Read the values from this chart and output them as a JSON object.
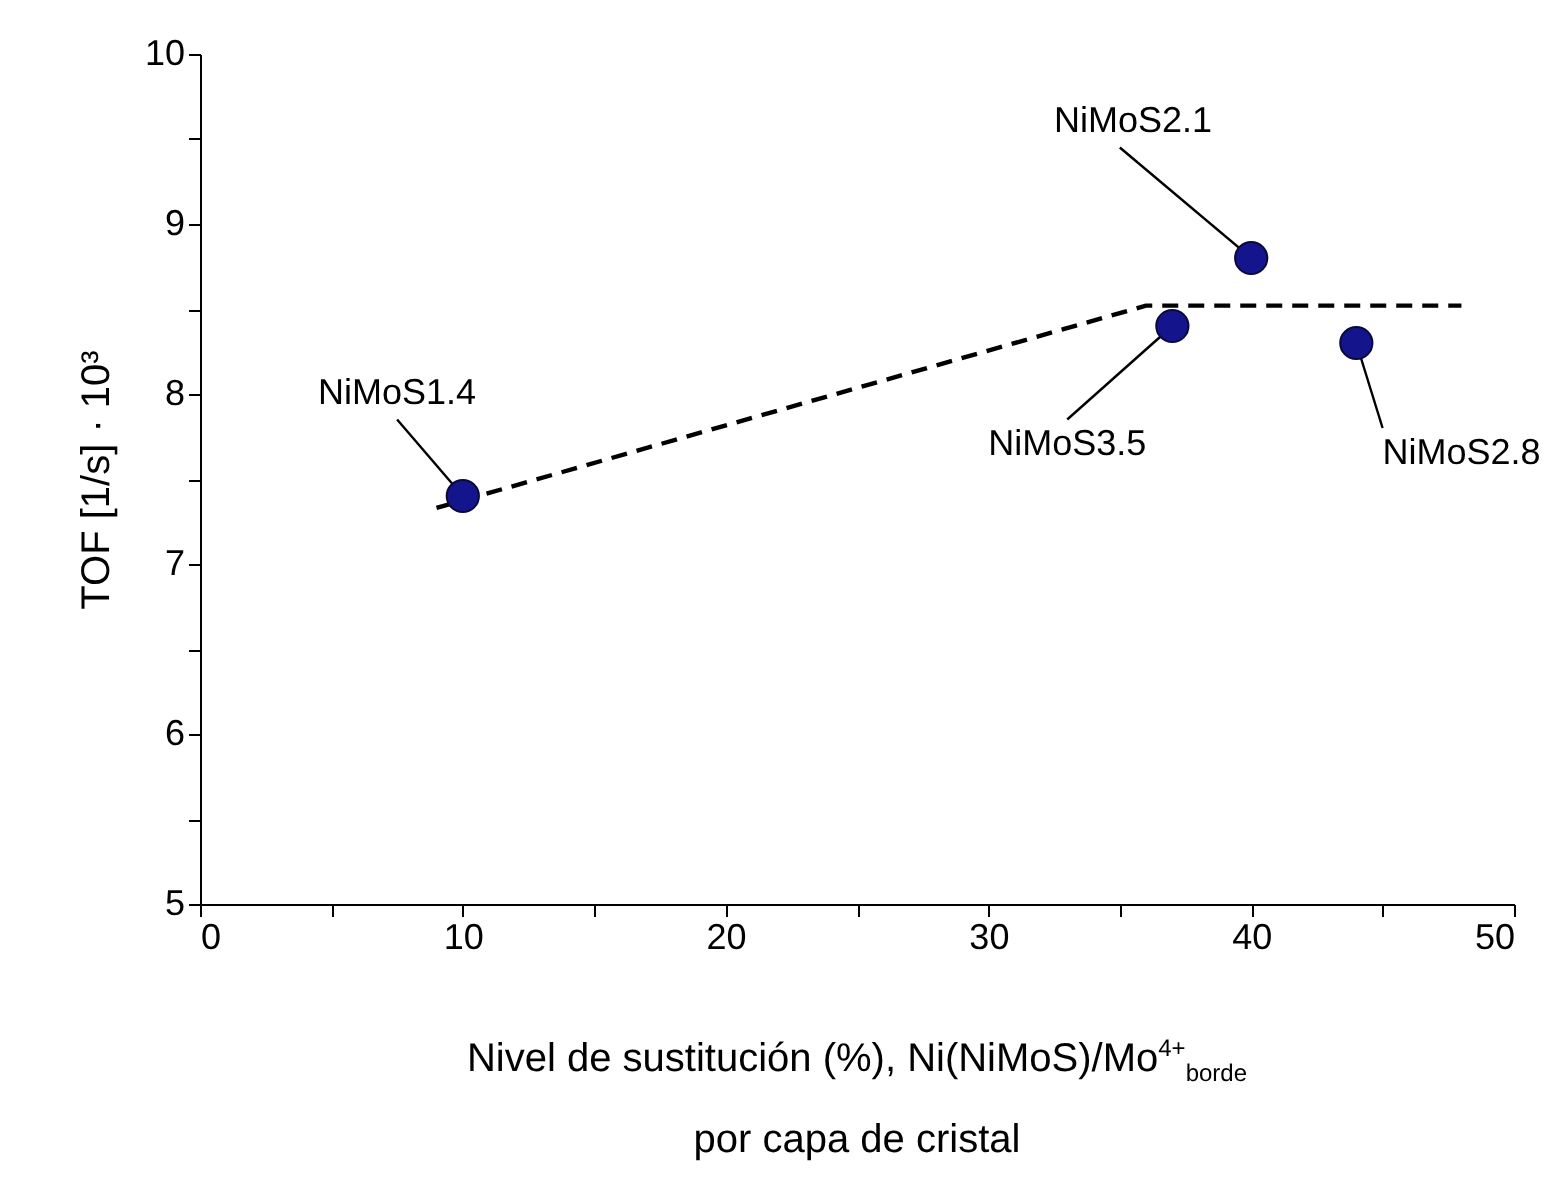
{
  "chart_data": {
    "type": "scatter",
    "xlabel": "Nivel de sustitución (%), Ni(NiMoS)/Mo$^{4+}$$_{borde}$\npor capa de cristal",
    "ylabel": "TOF [1/s] · 10³",
    "xlim": [
      0,
      50
    ],
    "xticks": [
      0,
      {
        "value": 5,
        "label": null
      },
      10,
      {
        "value": 15,
        "label": null
      },
      20,
      {
        "value": 25,
        "label": null
      },
      30,
      {
        "value": 35,
        "label": null
      },
      40,
      {
        "value": 45,
        "label": null
      },
      50
    ],
    "ylim": [
      5,
      10
    ],
    "yticks": [
      5,
      {
        "value": 5.5,
        "label": null
      },
      6,
      {
        "value": 6.5,
        "label": null
      },
      7,
      {
        "value": 7.5,
        "label": null
      },
      8,
      {
        "value": 8.5,
        "label": null
      },
      9,
      {
        "value": 9.5,
        "label": null
      },
      10
    ],
    "grid": false,
    "series": [
      {
        "type": "line",
        "line_style": "dashed",
        "marker": "none",
        "color": "#000000",
        "x": [
          9,
          36,
          48
        ],
        "values": [
          7.33,
          8.52,
          8.52
        ]
      },
      {
        "type": "scatter",
        "marker": "circle",
        "color": "#14148c",
        "x": [
          10,
          37,
          40,
          44
        ],
        "values": [
          7.4,
          8.4,
          8.8,
          8.3
        ]
      }
    ],
    "annotations": [
      {
        "text": "NiMoS1.4",
        "x": 10,
        "y": 7.4
      },
      {
        "text": "NiMoS2.1",
        "x": 40,
        "y": 8.8
      },
      {
        "text": "NiMoS3.5",
        "x": 37,
        "y": 8.4
      },
      {
        "text": "NiMoS2.8",
        "x": 44,
        "y": 8.3
      }
    ]
  }
}
